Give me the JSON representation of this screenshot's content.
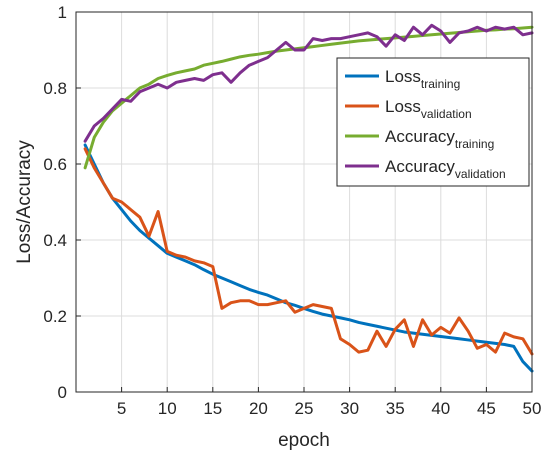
{
  "chart_data": {
    "type": "line",
    "title": "",
    "xlabel": "epoch",
    "ylabel": "Loss/Accuracy",
    "xlim": [
      0,
      50
    ],
    "ylim": [
      0,
      1
    ],
    "xticks": [
      5,
      10,
      15,
      20,
      25,
      30,
      35,
      40,
      45,
      50
    ],
    "yticks": [
      0,
      0.2,
      0.4,
      0.6,
      0.8,
      1
    ],
    "ytick_labels": [
      "0",
      "0.2",
      "0.4",
      "0.6",
      "0.8",
      "1"
    ],
    "grid": true,
    "legend_position": "top-right",
    "x": [
      1,
      2,
      3,
      4,
      5,
      6,
      7,
      8,
      9,
      10,
      11,
      12,
      13,
      14,
      15,
      16,
      17,
      18,
      19,
      20,
      21,
      22,
      23,
      24,
      25,
      26,
      27,
      28,
      29,
      30,
      31,
      32,
      33,
      34,
      35,
      36,
      37,
      38,
      39,
      40,
      41,
      42,
      43,
      44,
      45,
      46,
      47,
      48,
      49,
      50
    ],
    "series": [
      {
        "name_main": "Loss",
        "name_sub": "training",
        "color": "#0072BD",
        "values": [
          0.65,
          0.6,
          0.55,
          0.51,
          0.48,
          0.45,
          0.425,
          0.405,
          0.385,
          0.365,
          0.355,
          0.345,
          0.335,
          0.322,
          0.31,
          0.3,
          0.29,
          0.28,
          0.27,
          0.262,
          0.255,
          0.245,
          0.235,
          0.228,
          0.22,
          0.212,
          0.205,
          0.2,
          0.195,
          0.19,
          0.183,
          0.178,
          0.173,
          0.168,
          0.163,
          0.158,
          0.155,
          0.152,
          0.149,
          0.146,
          0.143,
          0.14,
          0.137,
          0.134,
          0.131,
          0.128,
          0.125,
          0.12,
          0.08,
          0.055
        ]
      },
      {
        "name_main": "Loss",
        "name_sub": "validation",
        "color": "#D95319",
        "values": [
          0.64,
          0.59,
          0.55,
          0.51,
          0.5,
          0.48,
          0.46,
          0.41,
          0.475,
          0.37,
          0.36,
          0.355,
          0.345,
          0.34,
          0.33,
          0.22,
          0.235,
          0.24,
          0.24,
          0.23,
          0.23,
          0.235,
          0.24,
          0.21,
          0.22,
          0.23,
          0.225,
          0.22,
          0.14,
          0.125,
          0.105,
          0.11,
          0.16,
          0.12,
          0.165,
          0.19,
          0.12,
          0.19,
          0.15,
          0.17,
          0.155,
          0.195,
          0.16,
          0.115,
          0.125,
          0.105,
          0.155,
          0.145,
          0.14,
          0.1
        ]
      },
      {
        "name_main": "Accuracy",
        "name_sub": "training",
        "color": "#77AC30",
        "values": [
          0.59,
          0.67,
          0.71,
          0.74,
          0.76,
          0.78,
          0.8,
          0.81,
          0.825,
          0.833,
          0.84,
          0.845,
          0.85,
          0.86,
          0.865,
          0.87,
          0.876,
          0.882,
          0.886,
          0.889,
          0.893,
          0.897,
          0.9,
          0.903,
          0.906,
          0.909,
          0.912,
          0.915,
          0.918,
          0.921,
          0.924,
          0.926,
          0.928,
          0.93,
          0.932,
          0.934,
          0.936,
          0.938,
          0.94,
          0.942,
          0.944,
          0.946,
          0.948,
          0.95,
          0.952,
          0.953,
          0.955,
          0.956,
          0.958,
          0.96
        ]
      },
      {
        "name_main": "Accuracy",
        "name_sub": "validation",
        "color": "#7E2F8E",
        "values": [
          0.66,
          0.7,
          0.72,
          0.745,
          0.77,
          0.765,
          0.79,
          0.8,
          0.81,
          0.8,
          0.815,
          0.82,
          0.825,
          0.82,
          0.835,
          0.84,
          0.815,
          0.84,
          0.86,
          0.87,
          0.88,
          0.9,
          0.92,
          0.9,
          0.9,
          0.93,
          0.925,
          0.93,
          0.93,
          0.935,
          0.94,
          0.945,
          0.935,
          0.91,
          0.94,
          0.925,
          0.96,
          0.94,
          0.965,
          0.95,
          0.92,
          0.945,
          0.95,
          0.96,
          0.95,
          0.96,
          0.955,
          0.96,
          0.94,
          0.945
        ]
      }
    ]
  }
}
